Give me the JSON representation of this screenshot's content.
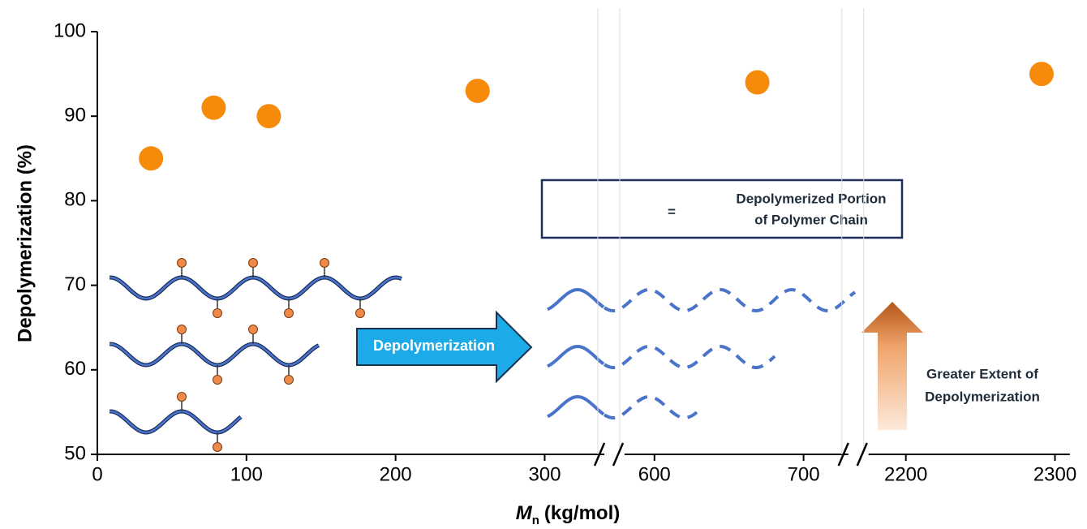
{
  "chart_data": {
    "type": "scatter",
    "ylabel": "Depolymerization (%)",
    "xlabel": {
      "symbol": "M",
      "subscript": "n",
      "unit": "(kg/mol)"
    },
    "x": [
      36,
      78,
      115,
      255,
      669,
      2291
    ],
    "values": [
      85,
      91,
      90,
      93,
      94,
      95
    ],
    "color": "#f58a0b",
    "xlim": [
      [
        0,
        340
      ],
      [
        580,
        730
      ],
      [
        2175,
        2310
      ]
    ],
    "xticks": [
      0,
      100,
      200,
      300,
      600,
      700,
      2200,
      2300
    ],
    "ylim": [
      50,
      100
    ],
    "yticks": [
      50,
      60,
      70,
      80,
      90,
      100
    ],
    "annotations": {
      "arrow": "Depolymerization",
      "legend_eq": "=",
      "legend_line1": "Depolymerized Portion",
      "legend_line2": "of Polymer Chain",
      "extent_line1": "Greater Extent of",
      "extent_line2": "Depolymerization"
    }
  }
}
